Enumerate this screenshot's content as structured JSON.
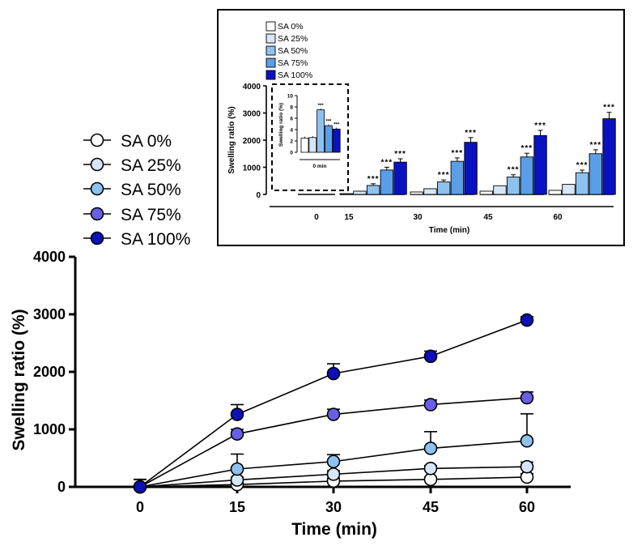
{
  "chart_data": [
    {
      "type": "line",
      "xlabel": "Time (min)",
      "ylabel": "Swelling ratio (%)",
      "x": [
        0,
        15,
        30,
        45,
        60
      ],
      "ylim": [
        0,
        4000
      ],
      "yticks": [
        0,
        1000,
        2000,
        3000,
        4000
      ],
      "legend_position": "top-left",
      "series": [
        {
          "name": "SA 0%",
          "color": "#ffffff",
          "values": [
            0,
            40,
            100,
            130,
            170
          ],
          "errors": [
            130,
            30,
            50,
            40,
            60
          ]
        },
        {
          "name": "SA 25%",
          "color": "#d6e6f7",
          "values": [
            0,
            120,
            220,
            320,
            350
          ],
          "errors": [
            130,
            50,
            60,
            50,
            80
          ]
        },
        {
          "name": "SA 50%",
          "color": "#8ec2ee",
          "values": [
            0,
            310,
            440,
            670,
            800
          ],
          "errors": [
            130,
            260,
            120,
            290,
            470
          ]
        },
        {
          "name": "SA 75%",
          "color": "#6a5ee6",
          "values": [
            0,
            920,
            1260,
            1430,
            1550
          ],
          "errors": [
            130,
            80,
            90,
            80,
            100
          ]
        },
        {
          "name": "SA 100%",
          "color": "#0d0fb8",
          "values": [
            0,
            1260,
            1970,
            2270,
            2900
          ],
          "errors": [
            130,
            170,
            170,
            90,
            60
          ]
        }
      ]
    },
    {
      "type": "bar",
      "xlabel": "Time (min)",
      "ylabel": "Swelling ratio (%)",
      "categories": [
        "0",
        "15",
        "30",
        "45",
        "60"
      ],
      "ylim": [
        0,
        4000
      ],
      "yticks": [
        0,
        1000,
        2000,
        3000,
        4000
      ],
      "legend_position": "top-left",
      "annotation": "***",
      "series": [
        {
          "name": "SA 0%",
          "color": "#ffffff",
          "values": [
            0,
            30,
            90,
            120,
            150
          ]
        },
        {
          "name": "SA 25%",
          "color": "#d6e6f7",
          "values": [
            0,
            120,
            210,
            320,
            370
          ]
        },
        {
          "name": "SA 50%",
          "color": "#8ec2ee",
          "values": [
            0,
            330,
            460,
            640,
            800
          ]
        },
        {
          "name": "SA 75%",
          "color": "#5a9ee8",
          "values": [
            0,
            900,
            1220,
            1380,
            1500
          ]
        },
        {
          "name": "SA 100%",
          "color": "#0a12c0",
          "values": [
            0,
            1190,
            1920,
            2170,
            2790
          ]
        }
      ]
    },
    {
      "type": "bar",
      "xlabel": "0 min",
      "ylabel": "Swelling ratio (%)",
      "ylim": [
        0,
        10
      ],
      "yticks": [
        0,
        2,
        4,
        6,
        8,
        10
      ],
      "annotation": "***",
      "values": [
        2.5,
        2.6,
        7.5,
        4.7,
        4.1
      ]
    }
  ]
}
